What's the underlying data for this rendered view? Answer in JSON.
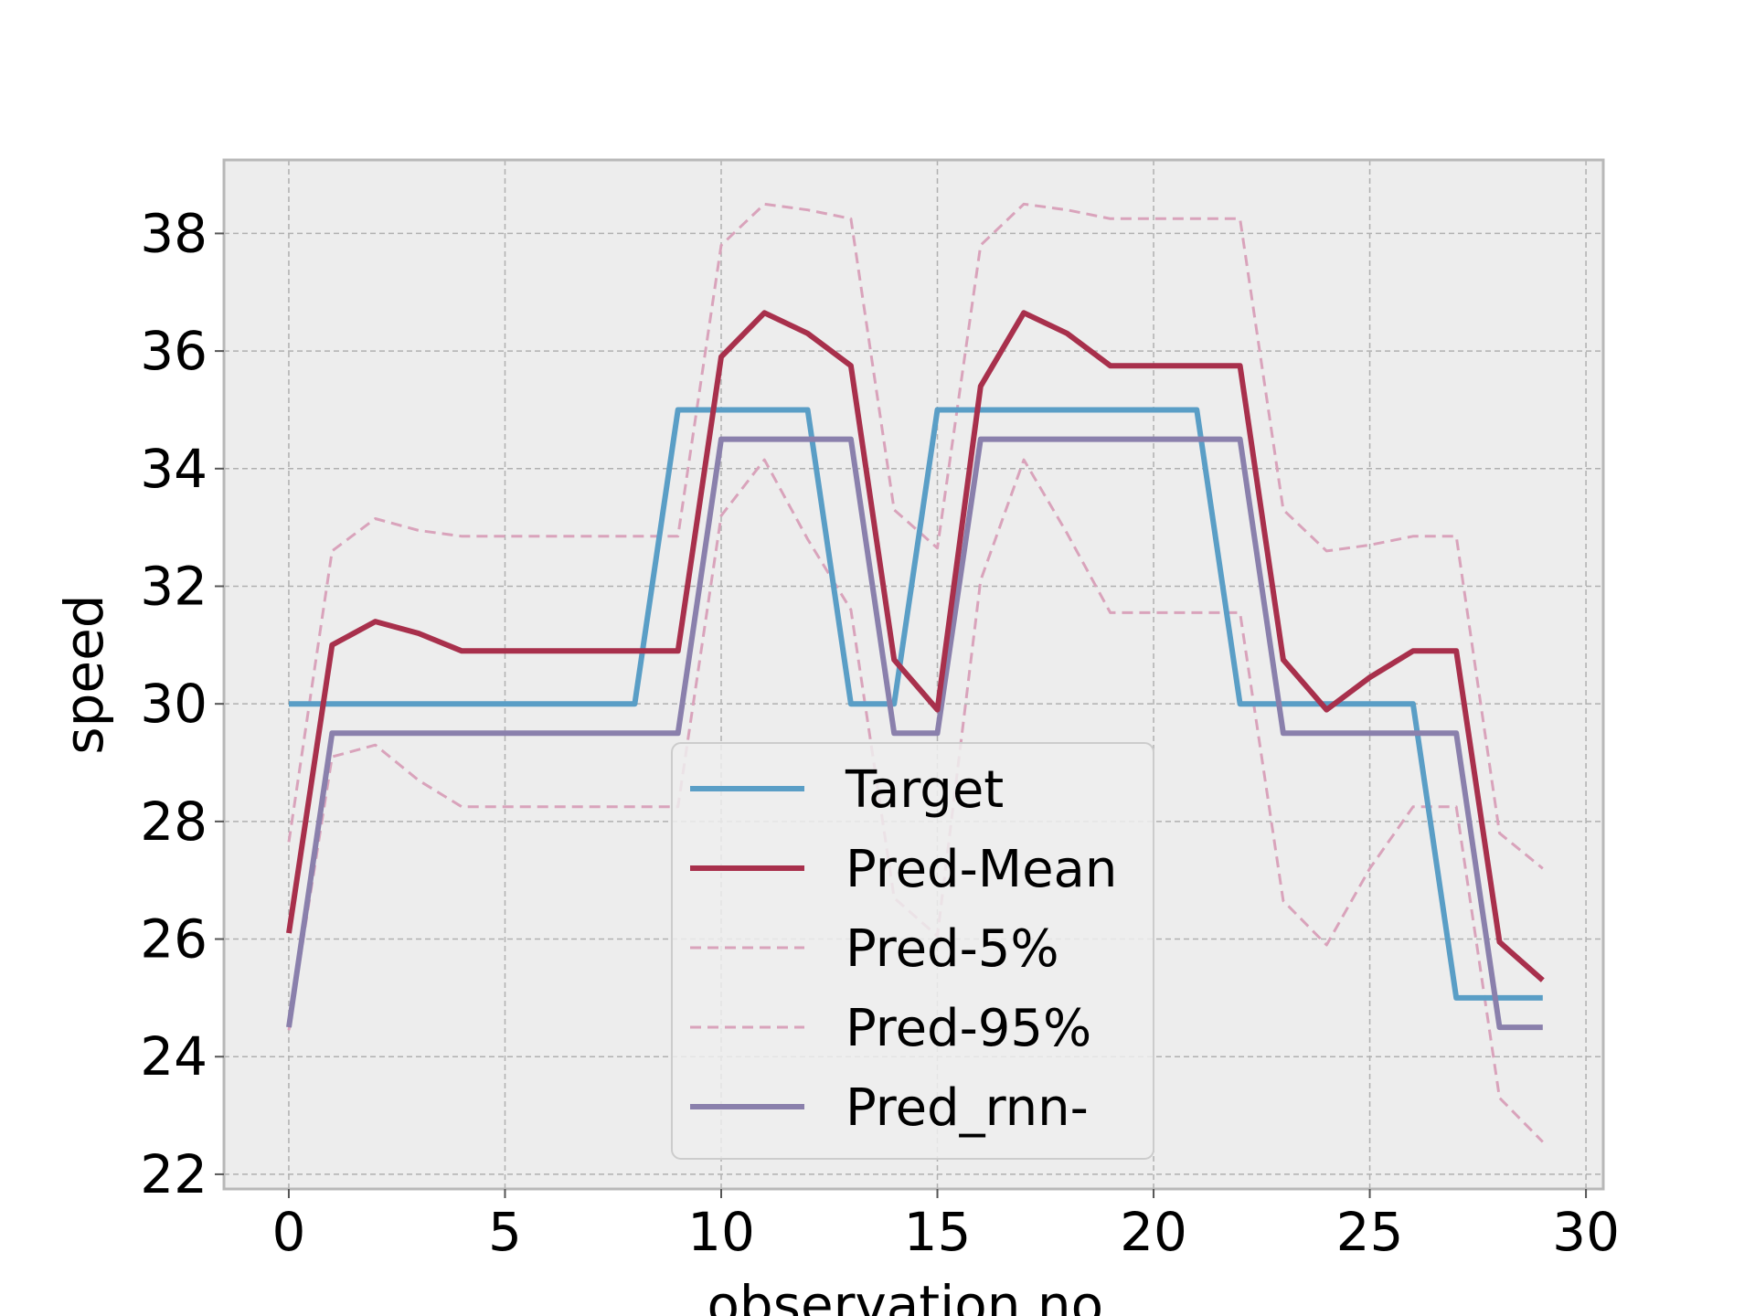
{
  "chart_data": {
    "type": "line",
    "title": "",
    "xlabel": "observation no.",
    "ylabel": "speed",
    "xlim": [
      -1.5,
      30.4
    ],
    "ylim": [
      21.75,
      39.25
    ],
    "xticks": [
      0,
      5,
      10,
      15,
      20,
      25,
      30
    ],
    "yticks": [
      22,
      24,
      26,
      28,
      30,
      32,
      34,
      36,
      38
    ],
    "grid": true,
    "legend_position": "lower center",
    "x": [
      0,
      1,
      2,
      3,
      4,
      5,
      6,
      7,
      8,
      9,
      10,
      11,
      12,
      13,
      14,
      15,
      16,
      17,
      18,
      19,
      20,
      21,
      22,
      23,
      24,
      25,
      26,
      27,
      28,
      29
    ],
    "series": [
      {
        "name": "Target",
        "color": "#5a9ec6",
        "style": "solid",
        "values": [
          30,
          30,
          30,
          30,
          30,
          30,
          30,
          30,
          30,
          35,
          35,
          35,
          35,
          30,
          30,
          35,
          35,
          35,
          35,
          35,
          35,
          35,
          30,
          30,
          30,
          30,
          30,
          25,
          25,
          25
        ]
      },
      {
        "name": "Pred-Mean",
        "color": "#a8304c",
        "style": "solid",
        "values": [
          26.1,
          31.0,
          31.4,
          31.2,
          30.9,
          30.9,
          30.9,
          30.9,
          30.9,
          30.9,
          35.9,
          36.65,
          36.3,
          35.75,
          30.75,
          29.9,
          35.4,
          36.65,
          36.3,
          35.75,
          35.75,
          35.75,
          35.75,
          30.75,
          29.9,
          30.45,
          30.9,
          30.9,
          25.95,
          25.3
        ]
      },
      {
        "name": "Pred-5%",
        "color": "#d9a3bb",
        "style": "dashed",
        "values": [
          24.45,
          29.1,
          29.3,
          28.7,
          28.25,
          28.25,
          28.25,
          28.25,
          28.25,
          28.25,
          33.2,
          34.15,
          32.8,
          31.6,
          26.7,
          26.05,
          32.1,
          34.15,
          32.9,
          31.55,
          31.55,
          31.55,
          31.55,
          26.65,
          25.9,
          27.2,
          28.25,
          28.25,
          23.3,
          22.55
        ]
      },
      {
        "name": "Pred-95%",
        "color": "#d9a3bb",
        "style": "dashed",
        "values": [
          27.65,
          32.6,
          33.15,
          32.95,
          32.85,
          32.85,
          32.85,
          32.85,
          32.85,
          32.85,
          37.8,
          38.5,
          38.4,
          38.25,
          33.3,
          32.65,
          37.8,
          38.5,
          38.4,
          38.25,
          38.25,
          38.25,
          38.25,
          33.3,
          32.6,
          32.7,
          32.85,
          32.85,
          27.8,
          27.2
        ]
      },
      {
        "name": "Pred_rnn-",
        "color": "#8a80ac",
        "style": "solid",
        "values": [
          24.5,
          29.5,
          29.5,
          29.5,
          29.5,
          29.5,
          29.5,
          29.5,
          29.5,
          29.5,
          34.5,
          34.5,
          34.5,
          34.5,
          29.5,
          29.5,
          34.5,
          34.5,
          34.5,
          34.5,
          34.5,
          34.5,
          34.5,
          29.5,
          29.5,
          29.5,
          29.5,
          29.5,
          24.5,
          24.5
        ]
      }
    ]
  }
}
